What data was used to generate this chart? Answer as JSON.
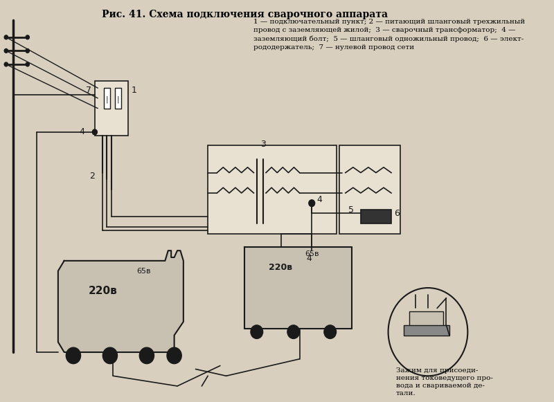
{
  "title": "Рис. 41. Схема подключения сварочного аппарата",
  "legend_text": "1 — подключательный пункт; 2 — питающий шланговый трехжильный\nпровод с заземляющей жилой;  3 — сварочный трансформатор;  4 —\nзаземляющий болт;  5 — шланговый одножильный провод;  6 — элект-\nрододержатель;  7 — нулевой провод сети",
  "caption_bottom_right": "Зажим для присоеди-\nнения токоведущего про-\nвода и свариваемой де-\nтали.",
  "bg_color": "#d8cfbf",
  "fig_width": 8.0,
  "fig_height": 5.81,
  "dpi": 100,
  "label_220v_left": "220в",
  "label_65v_left": "65в",
  "label_220v_right": "220в",
  "label_65v_right": "65в",
  "label_1": "1",
  "label_2": "2",
  "label_3": "3",
  "label_4a": "4",
  "label_4b": "4",
  "label_4c": "4",
  "label_5": "5",
  "label_6": "6",
  "label_7": "7"
}
